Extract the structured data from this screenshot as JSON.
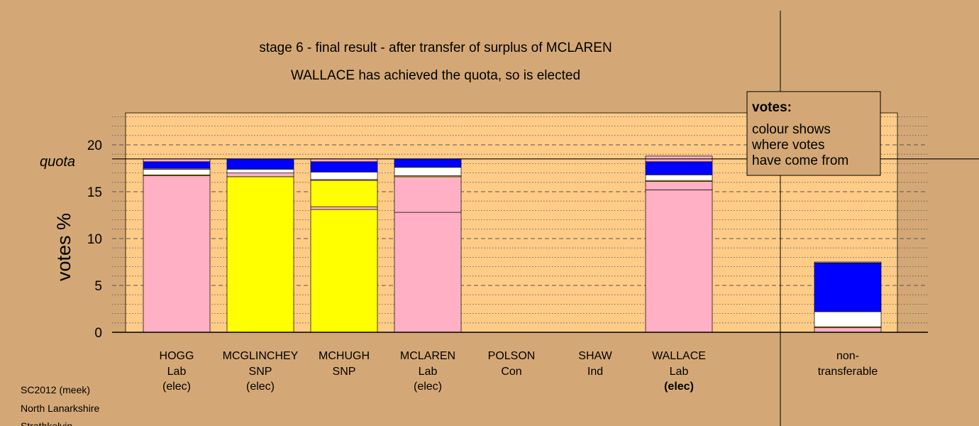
{
  "title": "stage 6 - final result - after transfer of surplus of MCLAREN",
  "subtitle": "WALLACE has achieved the quota, so is elected",
  "ylabel": "votes %",
  "quota_label": "quota",
  "legend": {
    "title": "votes:",
    "lines": [
      "colour shows",
      "where votes",
      "have come from"
    ]
  },
  "footer": [
    "SC2012 (meek)",
    "North Lanarkshire",
    "Strathkelvin"
  ],
  "colors": {
    "background": "#D4A876",
    "plot_area": "#FFCC88",
    "Lab": "#FFB0C4",
    "SNP": "#FFFF00",
    "other": "#FFFFFF",
    "transferred": "#0000FF"
  },
  "chart_data": {
    "type": "bar",
    "stacked": true,
    "ylim": [
      0,
      23.5
    ],
    "yticks": [
      0,
      5,
      10,
      15,
      20
    ],
    "quota": 18.5,
    "grid": "dashed major, dotted minor",
    "categories": [
      {
        "name": "HOGG",
        "party": "Lab",
        "status": "(elec)",
        "status_bold": false
      },
      {
        "name": "MCGLINCHEY",
        "party": "SNP",
        "status": "(elec)",
        "status_bold": false
      },
      {
        "name": "MCHUGH",
        "party": "SNP",
        "status": "",
        "status_bold": false
      },
      {
        "name": "MCLAREN",
        "party": "Lab",
        "status": "(elec)",
        "status_bold": false
      },
      {
        "name": "POLSON",
        "party": "Con",
        "status": "",
        "status_bold": false
      },
      {
        "name": "SHAW",
        "party": "Ind",
        "status": "",
        "status_bold": false
      },
      {
        "name": "WALLACE",
        "party": "Lab",
        "status": "(elec)",
        "status_bold": true
      }
    ],
    "segments": [
      [
        {
          "value": 16.7,
          "color": "#FFB0C4"
        },
        {
          "value": 0.1,
          "color": "#FFFF00"
        },
        {
          "value": 0.6,
          "color": "#FFFFFF"
        },
        {
          "value": 0.1,
          "color": "#FFB0C4"
        },
        {
          "value": 0.7,
          "color": "#0000FF"
        },
        {
          "value": 0.3,
          "color": "#FFB0C4"
        }
      ],
      [
        {
          "value": 16.6,
          "color": "#FFFF00"
        },
        {
          "value": 0.4,
          "color": "#FFB0C4"
        },
        {
          "value": 0.4,
          "color": "#FFFFFF"
        },
        {
          "value": 1.1,
          "color": "#0000FF"
        }
      ],
      [
        {
          "value": 13.1,
          "color": "#FFFF00"
        },
        {
          "value": 0.3,
          "color": "#FFB0C4"
        },
        {
          "value": 2.8,
          "color": "#FFFF00"
        },
        {
          "value": 0.1,
          "color": "#FFB0C4"
        },
        {
          "value": 0.8,
          "color": "#FFFFFF"
        },
        {
          "value": 1.1,
          "color": "#0000FF"
        },
        {
          "value": 0.3,
          "color": "#FFB0C4"
        }
      ],
      [
        {
          "value": 12.8,
          "color": "#FFB0C4"
        },
        {
          "value": 3.8,
          "color": "#FFB0C4"
        },
        {
          "value": 0.1,
          "color": "#FFFF00"
        },
        {
          "value": 0.9,
          "color": "#FFFFFF"
        },
        {
          "value": 0.9,
          "color": "#0000FF"
        }
      ],
      [],
      [],
      [
        {
          "value": 15.2,
          "color": "#FFB0C4"
        },
        {
          "value": 0.9,
          "color": "#FFB0C4"
        },
        {
          "value": 0.1,
          "color": "#FFFF00"
        },
        {
          "value": 0.6,
          "color": "#FFFFFF"
        },
        {
          "value": 1.4,
          "color": "#0000FF"
        },
        {
          "value": 0.6,
          "color": "#FFB0C4"
        }
      ]
    ],
    "nontransferable": {
      "label": [
        "non-",
        "transferable"
      ],
      "segments": [
        {
          "value": 0.5,
          "color": "#FFB0C4"
        },
        {
          "value": 0.1,
          "color": "#FFFF00"
        },
        {
          "value": 1.6,
          "color": "#FFFFFF"
        },
        {
          "value": 5.2,
          "color": "#0000FF"
        },
        {
          "value": 0.1,
          "color": "#FFB0C4"
        }
      ]
    }
  }
}
